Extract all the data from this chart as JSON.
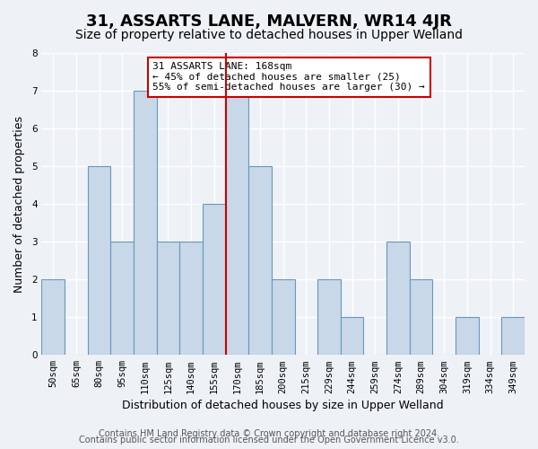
{
  "title": "31, ASSARTS LANE, MALVERN, WR14 4JR",
  "subtitle": "Size of property relative to detached houses in Upper Welland",
  "xlabel": "Distribution of detached houses by size in Upper Welland",
  "ylabel": "Number of detached properties",
  "bar_labels": [
    "50sqm",
    "65sqm",
    "80sqm",
    "95sqm",
    "110sqm",
    "125sqm",
    "140sqm",
    "155sqm",
    "170sqm",
    "185sqm",
    "200sqm",
    "215sqm",
    "229sqm",
    "244sqm",
    "259sqm",
    "274sqm",
    "289sqm",
    "304sqm",
    "319sqm",
    "334sqm",
    "349sqm"
  ],
  "bar_values": [
    2,
    0,
    5,
    3,
    7,
    3,
    3,
    4,
    7,
    5,
    2,
    0,
    2,
    1,
    0,
    3,
    2,
    0,
    1,
    0,
    1
  ],
  "bar_color": "#c8d8e8",
  "bar_edge_color": "#6699bb",
  "reference_line_label": "170sqm",
  "reference_line_color": "#cc0000",
  "ylim": [
    0,
    8
  ],
  "yticks": [
    0,
    1,
    2,
    3,
    4,
    5,
    6,
    7,
    8
  ],
  "annotation_title": "31 ASSARTS LANE: 168sqm",
  "annotation_line1": "← 45% of detached houses are smaller (25)",
  "annotation_line2": "55% of semi-detached houses are larger (30) →",
  "annotation_box_color": "#ffffff",
  "annotation_box_edge": "#cc0000",
  "footer_line1": "Contains HM Land Registry data © Crown copyright and database right 2024.",
  "footer_line2": "Contains public sector information licensed under the Open Government Licence v3.0.",
  "background_color": "#eef2f6",
  "grid_color": "#ffffff",
  "title_fontsize": 13,
  "subtitle_fontsize": 10,
  "label_fontsize": 9,
  "tick_fontsize": 7.5,
  "footer_fontsize": 7
}
